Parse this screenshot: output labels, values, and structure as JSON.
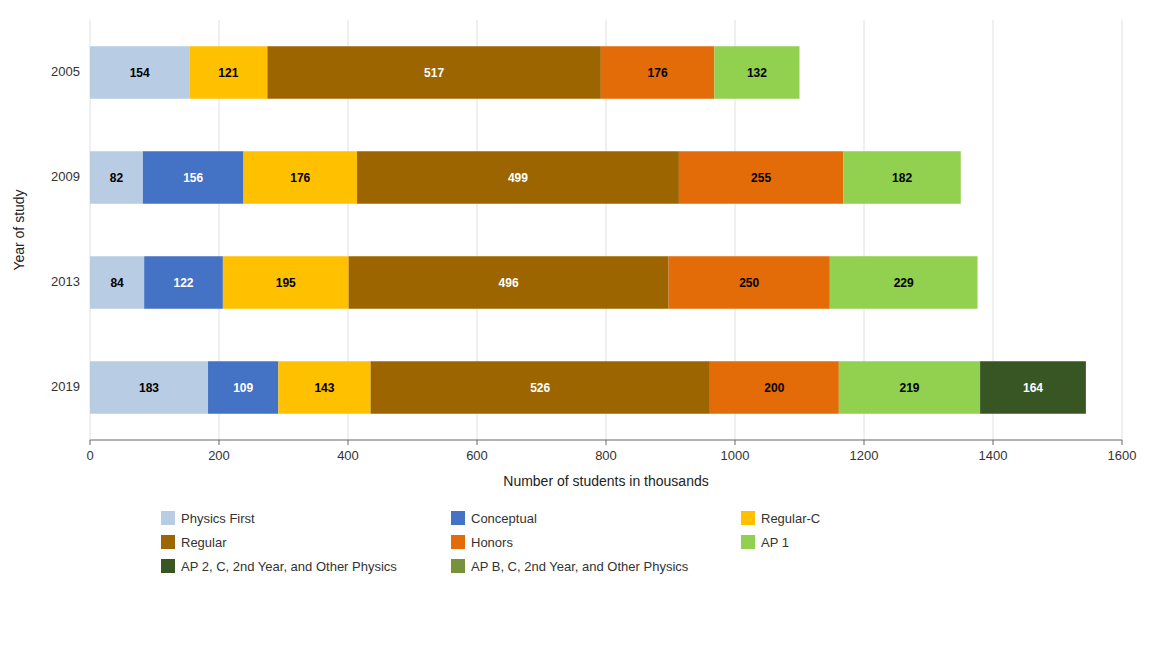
{
  "chart_data": {
    "type": "bar",
    "orientation": "horizontal",
    "stacked": true,
    "categories": [
      "2005",
      "2009",
      "2013",
      "2019"
    ],
    "series": [
      {
        "name": "Physics First",
        "color": "#b8cce4",
        "values": [
          154,
          82,
          84,
          183
        ]
      },
      {
        "name": "Conceptual",
        "color": "#4472c4",
        "values": [
          0,
          156,
          122,
          109
        ]
      },
      {
        "name": "Regular-C",
        "color": "#ffc000",
        "values": [
          121,
          176,
          195,
          143
        ]
      },
      {
        "name": "Regular",
        "color": "#9c6500",
        "values": [
          517,
          499,
          496,
          526
        ]
      },
      {
        "name": "Honors",
        "color": "#e36c09",
        "values": [
          176,
          255,
          250,
          200
        ]
      },
      {
        "name": "AP 1",
        "color": "#92d050",
        "values": [
          132,
          182,
          229,
          219
        ]
      },
      {
        "name": "AP 2, C, 2nd Year, and Other Physics",
        "color": "#375623",
        "values": [
          0,
          0,
          0,
          164
        ]
      },
      {
        "name": "AP B, C, 2nd Year, and Other Physics",
        "color": "#76923c",
        "values": [
          0,
          0,
          0,
          0
        ]
      }
    ],
    "xlabel": "Number of students in thousands",
    "ylabel": "Year of study",
    "xlim": [
      0,
      1600
    ],
    "xticks": [
      0,
      200,
      400,
      600,
      800,
      1000,
      1200,
      1400,
      1600
    ],
    "grid": true,
    "legend": "bottom",
    "data_labels": true
  }
}
